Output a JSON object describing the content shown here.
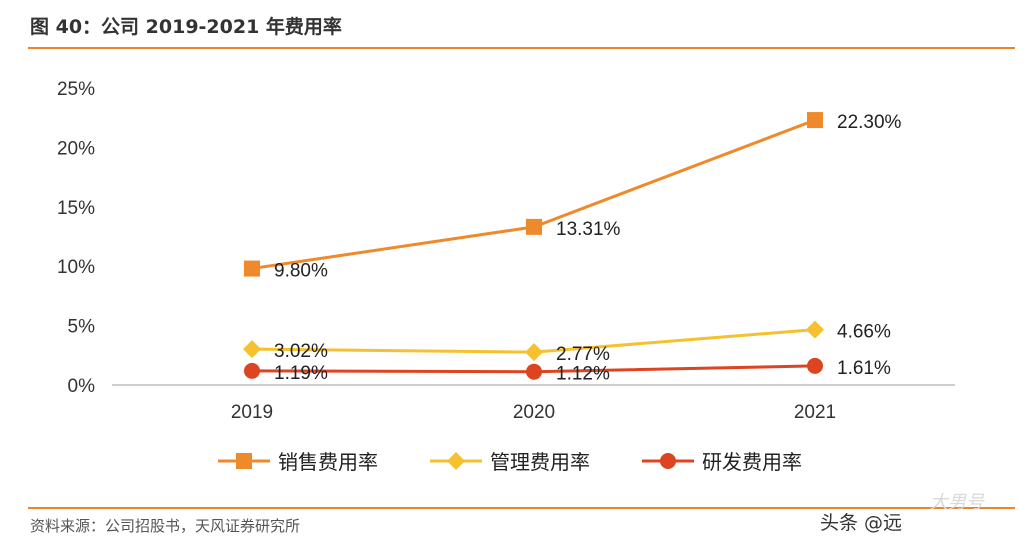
{
  "header": {
    "title": "图 40：公司 2019-2021 年费用率"
  },
  "footer": {
    "source": "资料来源：公司招股书，天风证券研究所",
    "watermark": "头条 @远",
    "stamp": "大男号"
  },
  "colors": {
    "rule": "#e8862f",
    "axis": "#bfbfbf"
  },
  "chart_data": {
    "type": "line",
    "categories": [
      "2019",
      "2020",
      "2021"
    ],
    "ylim": [
      0,
      25
    ],
    "yticks": [
      "0%",
      "5%",
      "10%",
      "15%",
      "20%",
      "25%"
    ],
    "grid": false,
    "legend_position": "bottom",
    "series": [
      {
        "name": "销售费用率",
        "values": [
          9.8,
          13.31,
          22.3
        ],
        "labels": [
          "9.80%",
          "13.31%",
          "22.30%"
        ],
        "color": "#ee8a2b",
        "marker": "square"
      },
      {
        "name": "管理费用率",
        "values": [
          3.02,
          2.77,
          4.66
        ],
        "labels": [
          "3.02%",
          "2.77%",
          "4.66%"
        ],
        "color": "#f5c12e",
        "marker": "diamond"
      },
      {
        "name": "研发费用率",
        "values": [
          1.19,
          1.12,
          1.61
        ],
        "labels": [
          "1.19%",
          "1.12%",
          "1.61%"
        ],
        "color": "#dd4422",
        "marker": "circle"
      }
    ]
  }
}
